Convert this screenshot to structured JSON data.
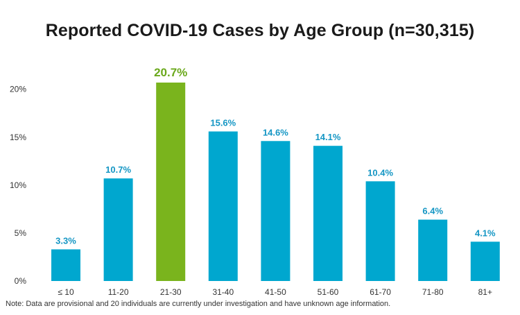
{
  "chart_data": {
    "type": "bar",
    "title": "Reported COVID-19 Cases by Age Group (n=30,315)",
    "categories": [
      "≤ 10",
      "11-20",
      "21-30",
      "31-40",
      "41-50",
      "51-60",
      "61-70",
      "71-80",
      "81+"
    ],
    "values": [
      3.3,
      10.7,
      20.7,
      15.6,
      14.6,
      14.1,
      10.4,
      6.4,
      4.1
    ],
    "value_labels": [
      "3.3%",
      "10.7%",
      "20.7%",
      "15.6%",
      "14.6%",
      "14.1%",
      "10.4%",
      "6.4%",
      "4.1%"
    ],
    "yticks": [
      0,
      5,
      10,
      15,
      20
    ],
    "ytick_labels": [
      "0%",
      "5%",
      "10%",
      "15%",
      "20%"
    ],
    "ylim": [
      0,
      20.7
    ],
    "highlight_index": 2,
    "colors": {
      "bar": "#00a7cf",
      "highlight": "#7ab41d",
      "label": "#1496c4",
      "highlight_label": "#6aa81b"
    },
    "xlabel": "",
    "ylabel": "",
    "grid": false,
    "legend": "none"
  },
  "note": "Note: Data are provisional and 20 individuals are currently under investigation and have unknown age information."
}
